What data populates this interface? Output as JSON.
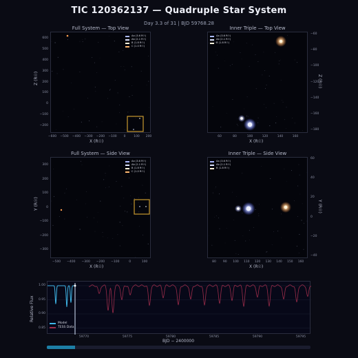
{
  "title": "TIC 120362137  —  Quadruple Star System",
  "subtitle": "Day 3.3 of 31   |   BJD 59768.28",
  "panels": {
    "full_top": {
      "title": "Full System — Top View",
      "xlabel": "X  (R☉)",
      "ylabel": "Z  (R☉)",
      "xticks": [
        "−600",
        "−500",
        "−400",
        "−300",
        "−200",
        "−100",
        "0",
        "100",
        "200"
      ],
      "yticks": [
        "600",
        "500",
        "400",
        "300",
        "200",
        "100",
        "0",
        "−100",
        "−200"
      ]
    },
    "inner_top": {
      "title": "Inner Triple — Top View",
      "xlabel": "X  (R☉)",
      "ylabel": "Z  (R☉)",
      "xticks": [
        "60",
        "80",
        "100",
        "120",
        "140",
        "160"
      ],
      "yticks": [
        "−60",
        "−80",
        "−100",
        "−120",
        "−140",
        "−160",
        "−180"
      ]
    },
    "full_side": {
      "title": "Full System — Side View",
      "xlabel": "X  (R☉)",
      "ylabel": "Y  (R☉)",
      "xticks": [
        "−500",
        "−400",
        "−300",
        "−200",
        "−100",
        "0",
        "100"
      ],
      "yticks": [
        "300",
        "200",
        "100",
        "0",
        "−100",
        "−200",
        "−300"
      ]
    },
    "inner_side": {
      "title": "Inner Triple — Side View",
      "xlabel": "X  (R☉)",
      "ylabel": "Y  (R☉)",
      "xticks": [
        "80",
        "90",
        "100",
        "110",
        "120",
        "130",
        "140",
        "150",
        "160"
      ],
      "yticks": [
        "60",
        "40",
        "20",
        "0",
        "−20",
        "−40"
      ]
    }
  },
  "legend_full": [
    {
      "label": "Aa  (3.6 R☉)",
      "color": "#aab8ff"
    },
    {
      "label": "Ab  (2.1 R☉)",
      "color": "#dde3ff"
    },
    {
      "label": "B  (1.8 R☉)",
      "color": "#fff4dc"
    },
    {
      "label": "C  (1.0 R☉)",
      "color": "#ffb870"
    }
  ],
  "legend_inner": [
    {
      "label": "Aa  (3.6 R☉)",
      "color": "#aab8ff"
    },
    {
      "label": "Ab  (2.1 R☉)",
      "color": "#dde3ff"
    },
    {
      "label": "B  (1.8 R☉)",
      "color": "#fff4dc"
    }
  ],
  "lightcurve": {
    "ylabel": "Relative Flux",
    "xlabel": "BJD − 2400000",
    "xticks": [
      "59770",
      "59775",
      "59780",
      "59785",
      "59790",
      "59795"
    ],
    "yticks": [
      "1.00",
      "0.95",
      "0.90",
      "0.85"
    ],
    "legend": [
      {
        "label": "Model",
        "color": "#3fb6e8"
      },
      {
        "label": "TESS Data",
        "color": "#9b2c4a"
      }
    ],
    "current_bjd": 59768.28
  },
  "progress": {
    "fraction": 0.106
  },
  "colors": {
    "model": "#3fb6e8",
    "data": "#9b2c4a",
    "box": "#c99a2e",
    "bg": "#0a0b14"
  }
}
